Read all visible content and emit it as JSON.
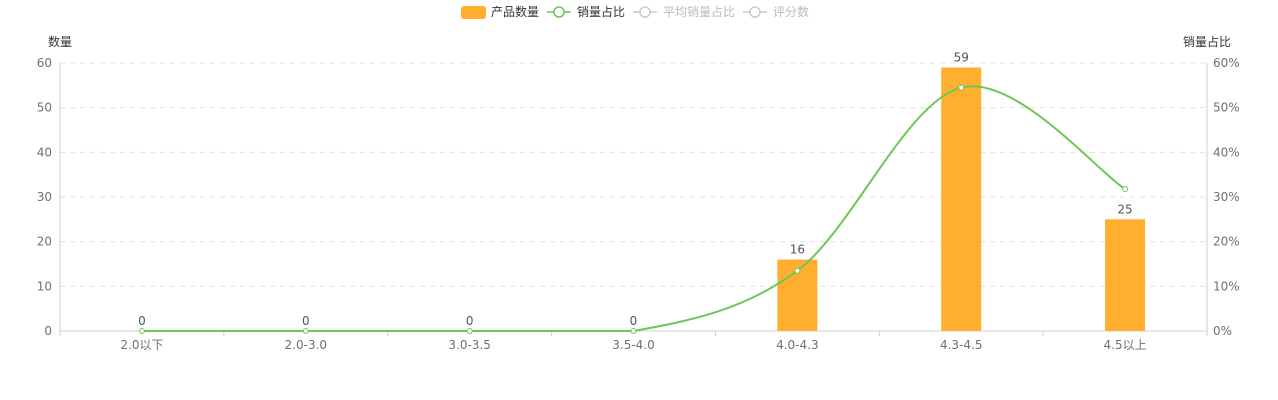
{
  "chart_data": {
    "type": "bar",
    "categories": [
      "2.0以下",
      "2.0-3.0",
      "3.0-3.5",
      "3.5-4.0",
      "4.0-4.3",
      "4.3-4.5",
      "4.5以上"
    ],
    "series": [
      {
        "name": "产品数量",
        "type": "bar",
        "axis": "left",
        "values": [
          0,
          0,
          0,
          0,
          16,
          59,
          25
        ],
        "color": "#FFAE2E"
      },
      {
        "name": "销量占比",
        "type": "line",
        "axis": "right",
        "values": [
          0,
          0,
          0,
          0,
          13.5,
          54.5,
          31.8
        ],
        "color": "#6DC755"
      }
    ],
    "legend": [
      {
        "name": "产品数量",
        "icon": "bar",
        "active": true,
        "color": "#FFAE2E"
      },
      {
        "name": "销量占比",
        "icon": "line-circle",
        "active": true,
        "color": "#6DC755"
      },
      {
        "name": "平均销量占比",
        "icon": "line-circle",
        "active": false,
        "color": "#cccccc"
      },
      {
        "name": "评分数",
        "icon": "line-circle",
        "active": false,
        "color": "#cccccc"
      }
    ],
    "y_left": {
      "label": "数量",
      "range": [
        0,
        60
      ],
      "ticks": [
        "0",
        "10",
        "20",
        "30",
        "40",
        "50",
        "60"
      ]
    },
    "y_right": {
      "label": "销量占比",
      "range": [
        0,
        60
      ],
      "ticks": [
        "0%",
        "10%",
        "20%",
        "30%",
        "40%",
        "50%",
        "60%"
      ]
    },
    "grid": true,
    "legend_position": "top-center"
  }
}
